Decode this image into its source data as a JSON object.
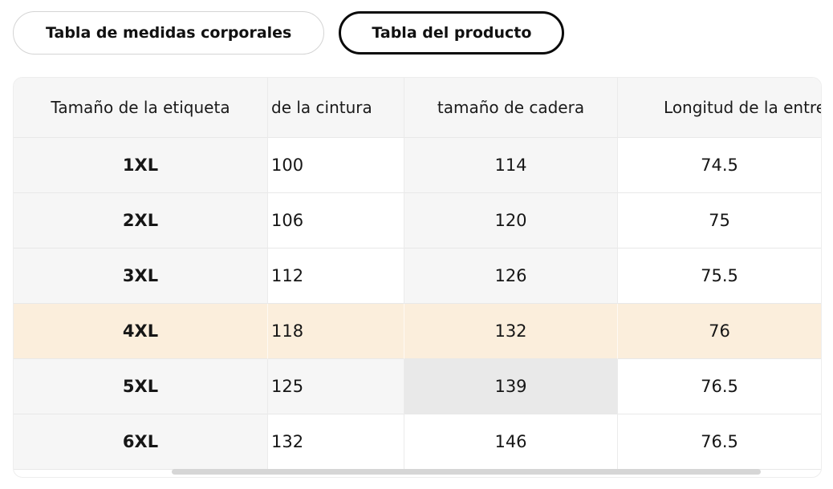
{
  "tabs": {
    "body_measurements": "Tabla de medidas corporales",
    "product": "Tabla del producto",
    "selected": "Tabla del producto"
  },
  "size_table": {
    "columns": {
      "label_size": "Tamaño de la etiqueta",
      "waist": "de la cintura",
      "hip": "tamaño de cadera",
      "inseam": "Longitud de la entre"
    },
    "rows": [
      {
        "size": "1XL",
        "waist": "100",
        "hip": "114",
        "inseam": "74.5",
        "highlight": "none"
      },
      {
        "size": "2XL",
        "waist": "106",
        "hip": "120",
        "inseam": "75",
        "highlight": "none"
      },
      {
        "size": "3XL",
        "waist": "112",
        "hip": "126",
        "inseam": "75.5",
        "highlight": "none"
      },
      {
        "size": "4XL",
        "waist": "118",
        "hip": "132",
        "inseam": "76",
        "highlight": "recommended-row"
      },
      {
        "size": "5XL",
        "waist": "125",
        "hip": "139",
        "inseam": "76.5",
        "highlight": "matched-hip-cell"
      },
      {
        "size": "6XL",
        "waist": "132",
        "hip": "146",
        "inseam": "76.5",
        "highlight": "none"
      }
    ]
  },
  "colors": {
    "recommended_row_bg": "#fbeedc",
    "matched_cell_bg": "#e9e9e9",
    "column_tint_bg": "#f6f6f6",
    "header_bg": "#f6f6f6",
    "divider": "#e8e8e8",
    "scrollbar_thumb": "#d6d6d6",
    "selected_tab_border": "#0a0a0a",
    "unselected_tab_border": "#d4d4d4"
  }
}
